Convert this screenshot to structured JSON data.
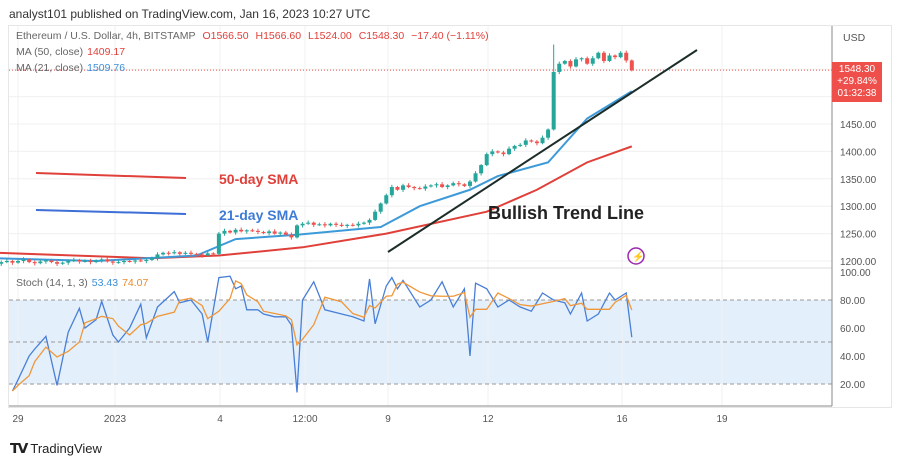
{
  "header": {
    "published": "analyst101 published on TradingView.com, Jan 16, 2023 10:27 UTC"
  },
  "legend": {
    "symbol": "Ethereum / U.S. Dollar, 4h, BITSTAMP",
    "o": "O1566.50",
    "h": "H1566.60",
    "l": "L1524.00",
    "c": "C1548.30",
    "chg": "−17.40 (−1.11%)",
    "ma50_label": "MA (50, close)",
    "ma50_value": "1409.17",
    "ma21_label": "MA (21, close)",
    "ma21_value": "1509.76",
    "stoch_label": "Stoch (14, 1, 3)",
    "stoch_k": "53.43",
    "stoch_d": "74.07"
  },
  "price_axis": {
    "currency": "USD",
    "ticks": [
      "1200.00",
      "1250.00",
      "1300.00",
      "1350.00",
      "1400.00",
      "1450.00"
    ],
    "last_price": "1548.30",
    "last_change": "+29.84%",
    "countdown": "01:32:38"
  },
  "stoch_axis": {
    "ticks": [
      "20.00",
      "40.00",
      "60.00",
      "80.00",
      "100.00"
    ]
  },
  "time_axis": {
    "ticks": [
      "29",
      "2023",
      "4",
      "12:00",
      "9",
      "12",
      "16",
      "19"
    ]
  },
  "annotations": {
    "sma50": "50-day SMA",
    "sma21": "21-day SMA",
    "trend": "Bullish Trend Line"
  },
  "colors": {
    "up": "#26a69a",
    "down": "#ef5350",
    "ma50": "#e0403a",
    "ma21": "#3d9ad9",
    "stoch_k": "#4a7fd6",
    "stoch_d": "#f0973a",
    "trend": "#1d2e2a",
    "accent": "#9c27b0"
  },
  "footer": {
    "brand": "TradingView"
  },
  "chart_data": {
    "type": "candlestick",
    "interval": "4h",
    "ylim": [
      1180,
      1600
    ],
    "stoch_ylim": [
      0,
      100
    ],
    "closes": [
      1195,
      1198,
      1200,
      1197,
      1200,
      1203,
      1198,
      1196,
      1199,
      1201,
      1198,
      1195,
      1197,
      1200,
      1202,
      1199,
      1200,
      1198,
      1201,
      1203,
      1199,
      1197,
      1198,
      1200,
      1199,
      1201,
      1200,
      1202,
      1205,
      1212,
      1215,
      1214,
      1216,
      1213,
      1215,
      1213,
      1212,
      1210,
      1214,
      1213,
      1250,
      1255,
      1252,
      1257,
      1254,
      1256,
      1255,
      1253,
      1251,
      1254,
      1250,
      1252,
      1248,
      1243,
      1265,
      1268,
      1270,
      1266,
      1267,
      1265,
      1268,
      1266,
      1264,
      1266,
      1265,
      1268,
      1270,
      1275,
      1290,
      1305,
      1320,
      1335,
      1330,
      1338,
      1335,
      1333,
      1332,
      1336,
      1338,
      1340,
      1335,
      1338,
      1342,
      1340,
      1337,
      1345,
      1360,
      1375,
      1395,
      1400,
      1398,
      1395,
      1405,
      1410,
      1412,
      1420,
      1418,
      1415,
      1425,
      1440,
      1545,
      1560,
      1565,
      1555,
      1568,
      1570,
      1560,
      1570,
      1580,
      1565,
      1575,
      1572,
      1580,
      1566,
      1548
    ],
    "ma50": [
      [
        0,
        1215
      ],
      [
        28,
        1205
      ],
      [
        40,
        1210
      ],
      [
        55,
        1225
      ],
      [
        70,
        1250
      ],
      [
        88,
        1290
      ],
      [
        97,
        1330
      ],
      [
        106,
        1380
      ],
      [
        114,
        1409.17
      ]
    ],
    "ma21": [
      [
        0,
        1205
      ],
      [
        18,
        1200
      ],
      [
        36,
        1210
      ],
      [
        43,
        1240
      ],
      [
        54,
        1248
      ],
      [
        69,
        1262
      ],
      [
        76,
        1300
      ],
      [
        85,
        1330
      ],
      [
        90,
        1355
      ],
      [
        99,
        1380
      ],
      [
        106,
        1460
      ],
      [
        114,
        1509.76
      ]
    ],
    "stoch_k": [
      [
        3,
        15
      ],
      [
        4,
        23
      ],
      [
        6,
        40
      ],
      [
        7,
        45
      ],
      [
        9,
        54
      ],
      [
        11,
        19
      ],
      [
        13,
        57
      ],
      [
        15,
        74
      ],
      [
        16,
        60
      ],
      [
        18,
        66
      ],
      [
        19,
        79
      ],
      [
        21,
        55
      ],
      [
        22,
        50
      ],
      [
        24,
        60
      ],
      [
        26,
        77
      ],
      [
        27,
        53
      ],
      [
        29,
        75
      ],
      [
        32,
        86
      ],
      [
        33,
        78
      ],
      [
        35,
        80
      ],
      [
        37,
        70
      ],
      [
        38,
        50
      ],
      [
        40,
        96
      ],
      [
        42,
        97
      ],
      [
        43,
        88
      ],
      [
        44,
        90
      ],
      [
        45,
        73
      ],
      [
        47,
        73
      ],
      [
        48,
        70
      ],
      [
        50,
        68
      ],
      [
        52,
        68
      ],
      [
        53,
        62
      ],
      [
        54,
        14
      ],
      [
        55,
        80
      ],
      [
        57,
        93
      ],
      [
        59,
        73
      ],
      [
        62,
        70
      ],
      [
        64,
        68
      ],
      [
        66,
        65
      ],
      [
        67,
        95
      ],
      [
        68,
        63
      ],
      [
        70,
        90
      ],
      [
        71,
        96
      ],
      [
        72,
        88
      ],
      [
        73,
        94
      ],
      [
        76,
        75
      ],
      [
        78,
        80
      ],
      [
        80,
        93
      ],
      [
        82,
        75
      ],
      [
        84,
        88
      ],
      [
        85,
        40
      ],
      [
        86,
        92
      ],
      [
        88,
        88
      ],
      [
        90,
        75
      ],
      [
        92,
        80
      ],
      [
        94,
        75
      ],
      [
        96,
        72
      ],
      [
        98,
        85
      ],
      [
        100,
        80
      ],
      [
        102,
        78
      ],
      [
        103,
        70
      ],
      [
        105,
        85
      ],
      [
        106,
        65
      ],
      [
        108,
        70
      ],
      [
        110,
        85
      ],
      [
        111,
        80
      ],
      [
        113,
        85
      ],
      [
        114,
        53.43
      ]
    ]
  }
}
